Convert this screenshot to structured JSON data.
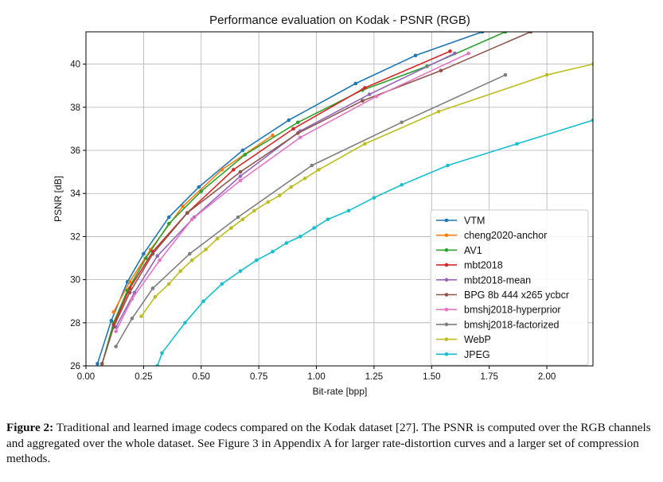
{
  "chart_data": {
    "type": "line",
    "title": "Performance evaluation on Kodak - PSNR (RGB)",
    "xlabel": "Bit-rate [bpp]",
    "ylabel": "PSNR [dB]",
    "xlim": [
      0.0,
      2.2
    ],
    "ylim": [
      26,
      41.5
    ],
    "xticks": [
      0.0,
      0.25,
      0.5,
      0.75,
      1.0,
      1.25,
      1.5,
      1.75,
      2.0
    ],
    "xtick_labels": [
      "0.00",
      "0.25",
      "0.50",
      "0.75",
      "1.00",
      "1.25",
      "1.50",
      "1.75",
      "2.00"
    ],
    "yticks": [
      26,
      28,
      30,
      32,
      34,
      36,
      38,
      40
    ],
    "ytick_labels": [
      "26",
      "28",
      "30",
      "32",
      "34",
      "36",
      "38",
      "40"
    ],
    "grid": true,
    "legend_position": "bottom-right",
    "series": [
      {
        "name": "VTM",
        "color": "#1f77b4",
        "points": [
          [
            0.05,
            26.1
          ],
          [
            0.11,
            28.1
          ],
          [
            0.18,
            29.9
          ],
          [
            0.25,
            31.2
          ],
          [
            0.36,
            32.9
          ],
          [
            0.49,
            34.3
          ],
          [
            0.68,
            36.0
          ],
          [
            0.88,
            37.4
          ],
          [
            1.17,
            39.1
          ],
          [
            1.43,
            40.4
          ],
          [
            1.72,
            41.5
          ]
        ]
      },
      {
        "name": "cheng2020-anchor",
        "color": "#ff7f0e",
        "points": [
          [
            0.12,
            28.5
          ],
          [
            0.19,
            29.9
          ],
          [
            0.28,
            31.4
          ],
          [
            0.42,
            33.4
          ],
          [
            0.59,
            35.1
          ],
          [
            0.81,
            36.7
          ]
        ]
      },
      {
        "name": "AV1",
        "color": "#2ca02c",
        "points": [
          [
            0.07,
            26.1
          ],
          [
            0.12,
            28.0
          ],
          [
            0.18,
            29.5
          ],
          [
            0.26,
            31.0
          ],
          [
            0.36,
            32.6
          ],
          [
            0.5,
            34.1
          ],
          [
            0.69,
            35.8
          ],
          [
            0.92,
            37.3
          ],
          [
            1.2,
            38.8
          ],
          [
            1.48,
            39.9
          ],
          [
            1.82,
            41.5
          ]
        ]
      },
      {
        "name": "mbt2018",
        "color": "#d62728",
        "points": [
          [
            0.12,
            27.9
          ],
          [
            0.19,
            29.6
          ],
          [
            0.29,
            31.3
          ],
          [
            0.44,
            33.1
          ],
          [
            0.64,
            35.1
          ],
          [
            0.9,
            37.0
          ],
          [
            1.21,
            38.9
          ],
          [
            1.58,
            40.6
          ]
        ]
      },
      {
        "name": "mbt2018-mean",
        "color": "#9467bd",
        "points": [
          [
            0.13,
            27.8
          ],
          [
            0.21,
            29.4
          ],
          [
            0.31,
            31.1
          ],
          [
            0.47,
            32.9
          ],
          [
            0.67,
            34.8
          ],
          [
            0.93,
            36.9
          ],
          [
            1.23,
            38.6
          ],
          [
            1.6,
            40.5
          ]
        ]
      },
      {
        "name": "BPG 8b 444 x265 ycbcr",
        "color": "#8c564b",
        "points": [
          [
            0.07,
            26.1
          ],
          [
            0.12,
            27.8
          ],
          [
            0.19,
            29.4
          ],
          [
            0.29,
            31.2
          ],
          [
            0.44,
            33.1
          ],
          [
            0.67,
            35.0
          ],
          [
            0.92,
            36.8
          ],
          [
            1.2,
            38.3
          ],
          [
            1.54,
            39.7
          ],
          [
            1.93,
            41.5
          ]
        ]
      },
      {
        "name": "bmshj2018-hyperprior",
        "color": "#e377c2",
        "points": [
          [
            0.13,
            27.6
          ],
          [
            0.2,
            29.1
          ],
          [
            0.32,
            30.9
          ],
          [
            0.46,
            32.8
          ],
          [
            0.67,
            34.6
          ],
          [
            0.93,
            36.6
          ],
          [
            1.26,
            38.5
          ],
          [
            1.66,
            40.5
          ]
        ]
      },
      {
        "name": "bmshj2018-factorized",
        "color": "#7f7f7f",
        "points": [
          [
            0.13,
            26.9
          ],
          [
            0.2,
            28.2
          ],
          [
            0.29,
            29.6
          ],
          [
            0.45,
            31.2
          ],
          [
            0.66,
            32.9
          ],
          [
            0.98,
            35.3
          ],
          [
            1.37,
            37.3
          ],
          [
            1.82,
            39.5
          ]
        ]
      },
      {
        "name": "WebP",
        "color": "#bcbd22",
        "points": [
          [
            0.24,
            28.3
          ],
          [
            0.3,
            29.2
          ],
          [
            0.36,
            29.8
          ],
          [
            0.41,
            30.4
          ],
          [
            0.46,
            30.9
          ],
          [
            0.52,
            31.4
          ],
          [
            0.57,
            31.9
          ],
          [
            0.63,
            32.4
          ],
          [
            0.68,
            32.8
          ],
          [
            0.73,
            33.2
          ],
          [
            0.79,
            33.6
          ],
          [
            0.84,
            33.9
          ],
          [
            0.89,
            34.3
          ],
          [
            0.95,
            34.7
          ],
          [
            1.01,
            35.1
          ],
          [
            1.21,
            36.3
          ],
          [
            1.53,
            37.8
          ],
          [
            2.0,
            39.5
          ],
          [
            2.2,
            40.0
          ]
        ]
      },
      {
        "name": "JPEG",
        "color": "#17becf",
        "points": [
          [
            0.31,
            26.0
          ],
          [
            0.33,
            26.6
          ],
          [
            0.43,
            28.0
          ],
          [
            0.51,
            29.0
          ],
          [
            0.59,
            29.8
          ],
          [
            0.67,
            30.4
          ],
          [
            0.74,
            30.9
          ],
          [
            0.81,
            31.3
          ],
          [
            0.87,
            31.7
          ],
          [
            0.93,
            32.0
          ],
          [
            0.99,
            32.4
          ],
          [
            1.05,
            32.8
          ],
          [
            1.14,
            33.2
          ],
          [
            1.25,
            33.8
          ],
          [
            1.37,
            34.4
          ],
          [
            1.57,
            35.3
          ],
          [
            1.87,
            36.3
          ],
          [
            2.2,
            37.4
          ]
        ]
      }
    ]
  },
  "caption": {
    "label": "Figure 2:",
    "text": " Traditional and learned image codecs compared on the Kodak dataset [27]. The PSNR is computed over the RGB channels and aggregated over the whole dataset. See Figure 3 in Appendix A for larger rate-distortion curves and a larger set of compression methods."
  }
}
